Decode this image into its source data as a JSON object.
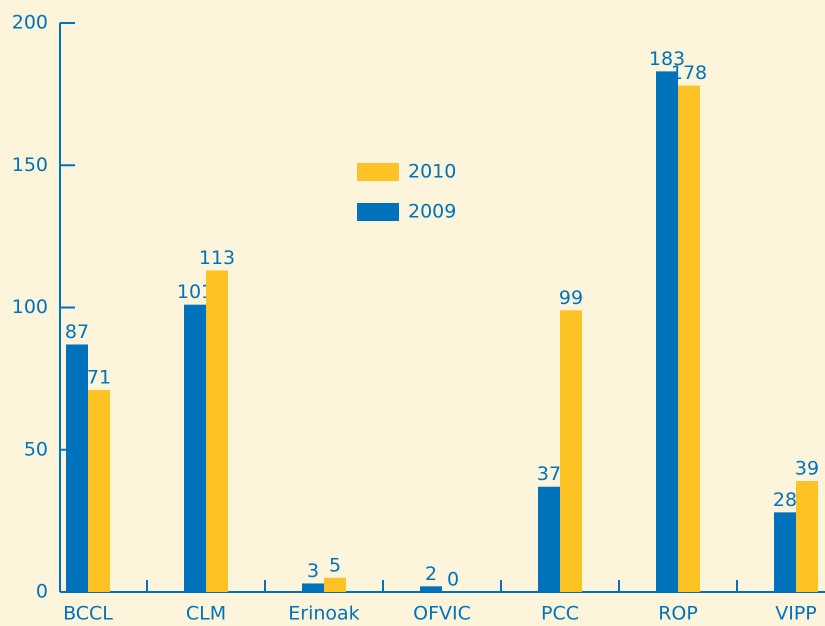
{
  "chart_data": {
    "type": "bar",
    "categories": [
      "BCCL",
      "CLM",
      "Erinoak",
      "OFVIC",
      "PCC",
      "ROP",
      "VIPP"
    ],
    "series": [
      {
        "name": "2009",
        "color": "#0072bc",
        "values": [
          87,
          101,
          3,
          2,
          37,
          183,
          28
        ]
      },
      {
        "name": "2010",
        "color": "#fdc224",
        "values": [
          71,
          113,
          5,
          0,
          99,
          178,
          39
        ]
      }
    ],
    "ylim": [
      0,
      200
    ],
    "yticks": [
      0,
      50,
      100,
      150,
      200
    ]
  }
}
